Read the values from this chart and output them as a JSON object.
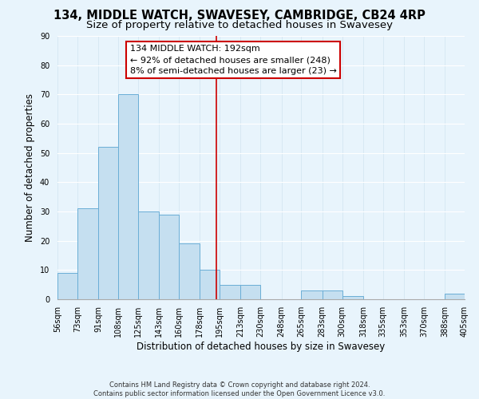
{
  "title": "134, MIDDLE WATCH, SWAVESEY, CAMBRIDGE, CB24 4RP",
  "subtitle": "Size of property relative to detached houses in Swavesey",
  "xlabel": "Distribution of detached houses by size in Swavesey",
  "ylabel": "Number of detached properties",
  "bar_edges": [
    56,
    73,
    91,
    108,
    125,
    143,
    160,
    178,
    195,
    213,
    230,
    248,
    265,
    283,
    300,
    318,
    335,
    353,
    370,
    388,
    405
  ],
  "bar_heights": [
    9,
    31,
    52,
    70,
    30,
    29,
    19,
    10,
    5,
    5,
    0,
    0,
    3,
    3,
    1,
    0,
    0,
    0,
    0,
    2
  ],
  "bar_color": "#c5dff0",
  "bar_edgecolor": "#6aaed6",
  "vline_x": 192,
  "vline_color": "#cc0000",
  "annotation_title": "134 MIDDLE WATCH: 192sqm",
  "annotation_line1": "← 92% of detached houses are smaller (248)",
  "annotation_line2": "8% of semi-detached houses are larger (23) →",
  "annotation_box_facecolor": "#ffffff",
  "annotation_box_edgecolor": "#cc0000",
  "ylim": [
    0,
    90
  ],
  "yticks": [
    0,
    10,
    20,
    30,
    40,
    50,
    60,
    70,
    80,
    90
  ],
  "tick_labels": [
    "56sqm",
    "73sqm",
    "91sqm",
    "108sqm",
    "125sqm",
    "143sqm",
    "160sqm",
    "178sqm",
    "195sqm",
    "213sqm",
    "230sqm",
    "248sqm",
    "265sqm",
    "283sqm",
    "300sqm",
    "318sqm",
    "335sqm",
    "353sqm",
    "370sqm",
    "388sqm",
    "405sqm"
  ],
  "footer_line1": "Contains HM Land Registry data © Crown copyright and database right 2024.",
  "footer_line2": "Contains public sector information licensed under the Open Government Licence v3.0.",
  "bg_color": "#e8f4fc",
  "grid_color": "#d0e4f0",
  "title_fontsize": 10.5,
  "subtitle_fontsize": 9.5,
  "axis_label_fontsize": 8.5,
  "tick_fontsize": 7,
  "annotation_fontsize": 8,
  "footer_fontsize": 6
}
